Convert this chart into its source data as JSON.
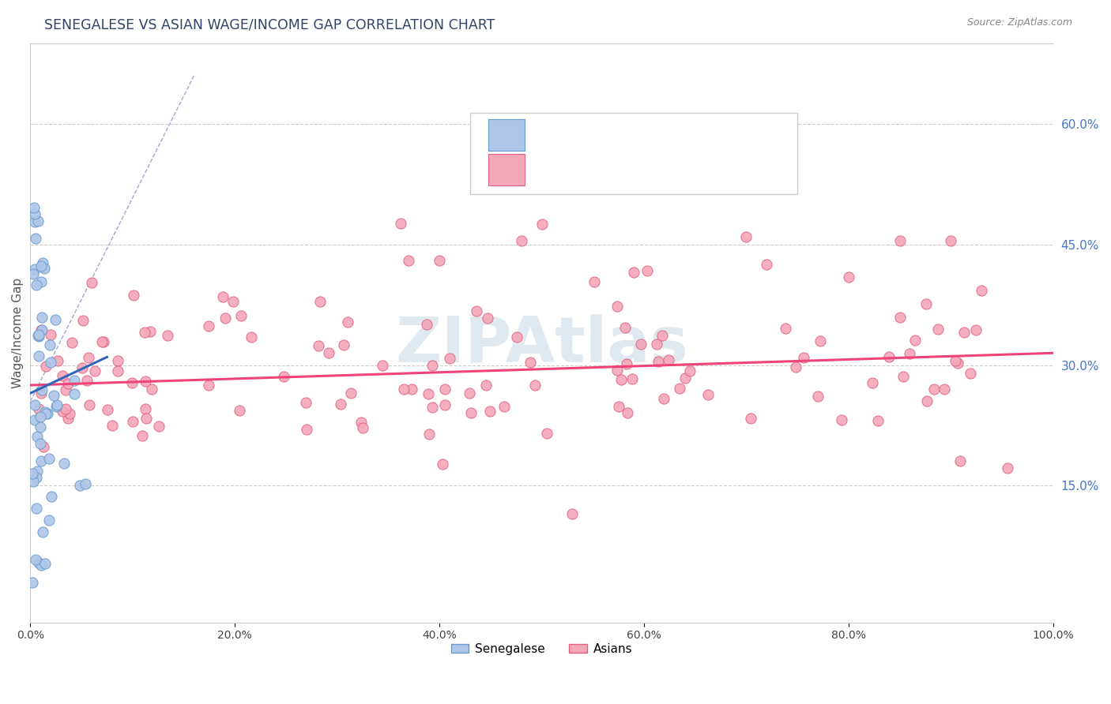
{
  "title": "SENEGALESE VS ASIAN WAGE/INCOME GAP CORRELATION CHART",
  "source": "Source: ZipAtlas.com",
  "ylabel": "Wage/Income Gap",
  "xlim": [
    0.0,
    1.0
  ],
  "ylim": [
    -0.02,
    0.7
  ],
  "yticks_right": [
    0.15,
    0.3,
    0.45,
    0.6
  ],
  "ytick_labels_right": [
    "15.0%",
    "30.0%",
    "45.0%",
    "60.0%"
  ],
  "xticks": [
    0.0,
    0.2,
    0.4,
    0.6,
    0.8,
    1.0
  ],
  "xtick_labels": [
    "0.0%",
    "20.0%",
    "40.0%",
    "60.0%",
    "80.0%",
    "100.0%"
  ],
  "bg_color": "#ffffff",
  "grid_color": "#cccccc",
  "senegalese_color": "#aec6e8",
  "asian_color": "#f4a7b9",
  "senegalese_edge": "#6699cc",
  "asian_edge": "#e06080",
  "trend_blue": "#3366bb",
  "trend_pink": "#ee4477",
  "legend_label1": "Senegalese",
  "legend_label2": "Asians",
  "watermark": "ZIPAtlas",
  "title_color": "#334466",
  "source_color": "#888888",
  "tick_color": "#4477cc"
}
